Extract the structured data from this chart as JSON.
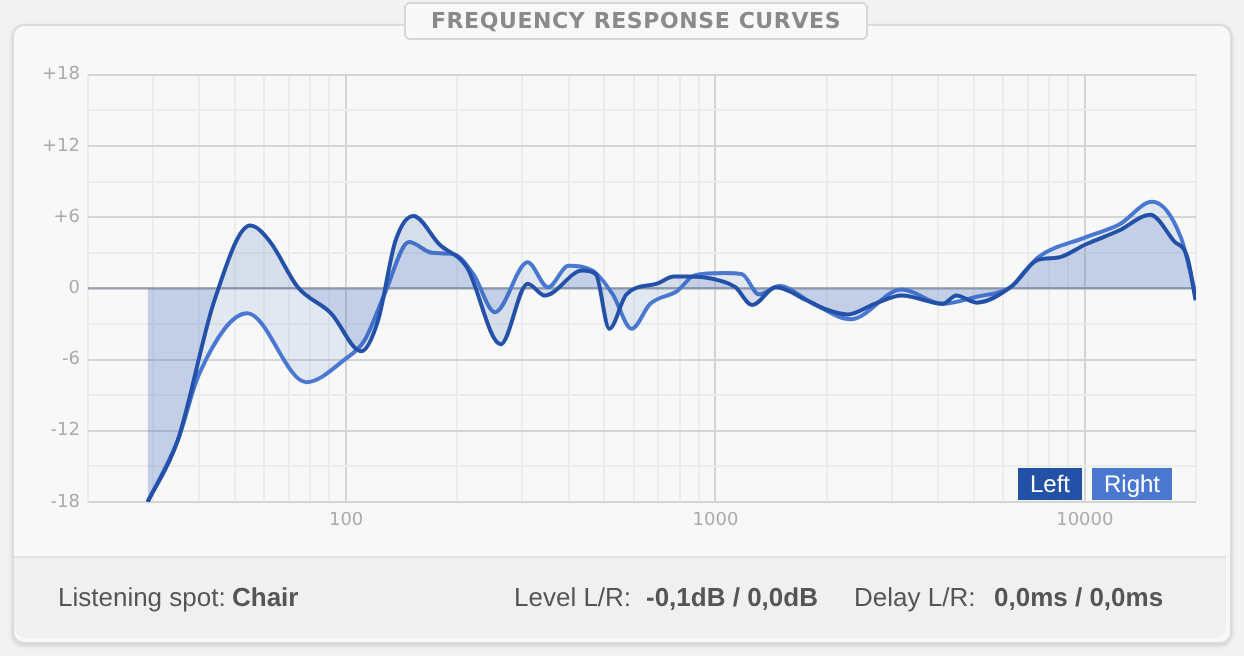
{
  "chart_data": {
    "type": "area",
    "title": "FREQUENCY RESPONSE CURVES",
    "log": "x",
    "grid": true,
    "legend": "bottom right",
    "marker": "none",
    "line_style": "solid",
    "xlim": [
      20,
      20000
    ],
    "xticks": [
      {
        "value": 20,
        "label": null
      },
      {
        "value": 30,
        "label": null
      },
      {
        "value": 40,
        "label": null
      },
      {
        "value": 50,
        "label": null
      },
      {
        "value": 60,
        "label": null
      },
      {
        "value": 70,
        "label": null
      },
      {
        "value": 80,
        "label": null
      },
      {
        "value": 90,
        "label": null
      },
      100,
      {
        "value": 200,
        "label": null
      },
      {
        "value": 300,
        "label": null
      },
      {
        "value": 400,
        "label": null
      },
      {
        "value": 500,
        "label": null
      },
      {
        "value": 600,
        "label": null
      },
      {
        "value": 700,
        "label": null
      },
      {
        "value": 800,
        "label": null
      },
      {
        "value": 900,
        "label": null
      },
      1000,
      {
        "value": 2000,
        "label": null
      },
      {
        "value": 3000,
        "label": null
      },
      {
        "value": 4000,
        "label": null
      },
      {
        "value": 5000,
        "label": null
      },
      {
        "value": 6000,
        "label": null
      },
      {
        "value": 7000,
        "label": null
      },
      {
        "value": 8000,
        "label": null
      },
      {
        "value": 9000,
        "label": null
      },
      10000,
      {
        "value": 20000,
        "label": null
      }
    ],
    "ylim": [
      -18,
      18
    ],
    "yticks": [
      {
        "value": -18,
        "label": "-18"
      },
      {
        "value": -15,
        "label": null
      },
      {
        "value": -12,
        "label": "-12"
      },
      {
        "value": -9,
        "label": null
      },
      {
        "value": -6,
        "label": "-6"
      },
      {
        "value": -3,
        "label": null
      },
      0,
      {
        "value": 3,
        "label": null
      },
      {
        "value": 6,
        "label": "+6"
      },
      {
        "value": 9,
        "label": null
      },
      {
        "value": 12,
        "label": "+12"
      },
      {
        "value": 15,
        "label": null
      },
      {
        "value": 18,
        "label": "+18"
      }
    ],
    "ref_lines": [
      {
        "axis": "y",
        "value": 0,
        "color": "#9aa0ac"
      }
    ],
    "series": [
      {
        "name": "Left",
        "color": "#2451a8",
        "x": [
          29,
          35,
          44,
          55,
          62,
          74,
          91,
          110,
          122,
          136,
          152,
          179,
          212,
          262,
          310,
          345,
          436,
          474,
          516,
          574,
          694,
          772,
          840,
          1016,
          1132,
          1257,
          1458,
          1766,
          2004,
          2277,
          2698,
          3194,
          4120,
          4487,
          5094,
          6295,
          7465,
          8478,
          10040,
          12420,
          15030,
          17430,
          18960,
          19950
        ],
        "values": [
          -18,
          -12.8,
          -1.0,
          5.3,
          4.0,
          0.1,
          -2.1,
          -5.3,
          -2.7,
          4.0,
          6.1,
          3.7,
          1.8,
          -4.7,
          0.4,
          -0.6,
          1.5,
          1.2,
          -3.4,
          -0.5,
          0.4,
          1.0,
          1.0,
          0.7,
          0.1,
          -1.4,
          0.1,
          -1.0,
          -1.8,
          -2.2,
          -1.3,
          -0.6,
          -1.3,
          -0.6,
          -1.2,
          0.1,
          2.4,
          2.6,
          3.7,
          4.9,
          6.2,
          4.0,
          2.6,
          -1.0
        ]
      },
      {
        "name": "Right",
        "color": "#4a78d0",
        "x": [
          29,
          35,
          40,
          54,
          78,
          99,
          112,
          127,
          148,
          171,
          195,
          221,
          253,
          310,
          352,
          400,
          465,
          527,
          593,
          666,
          789,
          877,
          1061,
          1180,
          1312,
          1490,
          1841,
          2323,
          3194,
          4120,
          5094,
          6295,
          7465,
          10040,
          12420,
          15210,
          18200,
          19950
        ],
        "values": [
          -18,
          -12.8,
          -7.2,
          -2.1,
          -7.9,
          -6.0,
          -4.4,
          -0.5,
          3.9,
          3.0,
          2.9,
          1.2,
          -2.0,
          2.2,
          0.1,
          1.9,
          1.5,
          -0.5,
          -3.4,
          -1.3,
          -0.2,
          1.1,
          1.3,
          1.2,
          -0.5,
          0.2,
          -1.3,
          -2.6,
          -0.1,
          -1.3,
          -0.7,
          0.1,
          2.6,
          4.3,
          5.4,
          7.3,
          4.3,
          -0.5
        ]
      }
    ],
    "annotations": [
      "Listening spot:",
      "Chair",
      "Level L/R:",
      "-0,1dB / 0,0dB",
      "Delay L/R:",
      "0,0ms / 0,0ms"
    ]
  }
}
